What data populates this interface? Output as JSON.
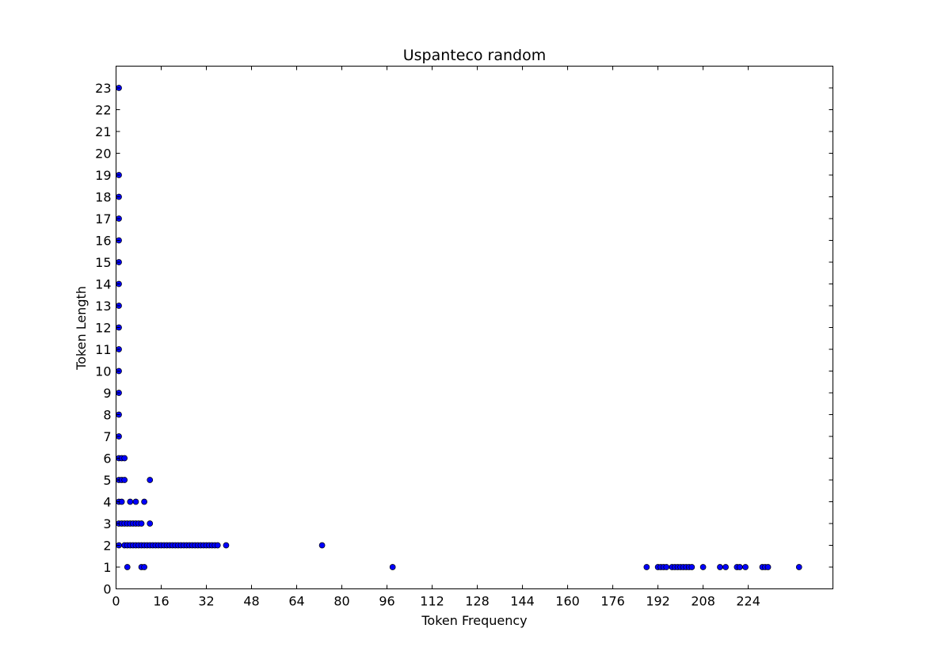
{
  "chart_data": {
    "type": "scatter",
    "title": "Uspanteco random",
    "xlabel": "Token Frequency",
    "ylabel": "Token Length",
    "xlim": [
      0,
      254
    ],
    "ylim": [
      0,
      24
    ],
    "xticks": [
      0,
      16,
      32,
      48,
      64,
      80,
      96,
      112,
      128,
      144,
      160,
      176,
      192,
      208,
      224
    ],
    "yticks": [
      0,
      1,
      2,
      3,
      4,
      5,
      6,
      7,
      8,
      9,
      10,
      11,
      12,
      13,
      14,
      15,
      16,
      17,
      18,
      19,
      20,
      21,
      22,
      23
    ],
    "grid": false,
    "marker_color": "#0000ff",
    "points": [
      [
        1,
        23
      ],
      [
        1,
        19
      ],
      [
        1,
        18
      ],
      [
        1,
        17
      ],
      [
        1,
        16
      ],
      [
        1,
        15
      ],
      [
        1,
        14
      ],
      [
        1,
        13
      ],
      [
        1,
        12
      ],
      [
        1,
        11
      ],
      [
        1,
        10
      ],
      [
        1,
        9
      ],
      [
        1,
        8
      ],
      [
        1,
        7
      ],
      [
        1,
        6
      ],
      [
        2,
        6
      ],
      [
        3,
        6
      ],
      [
        1,
        5
      ],
      [
        2,
        5
      ],
      [
        3,
        5
      ],
      [
        12,
        5
      ],
      [
        1,
        4
      ],
      [
        2,
        4
      ],
      [
        5,
        4
      ],
      [
        7,
        4
      ],
      [
        10,
        4
      ],
      [
        1,
        3
      ],
      [
        2,
        3
      ],
      [
        3,
        3
      ],
      [
        4,
        3
      ],
      [
        5,
        3
      ],
      [
        6,
        3
      ],
      [
        7,
        3
      ],
      [
        8,
        3
      ],
      [
        9,
        3
      ],
      [
        12,
        3
      ],
      [
        1,
        2
      ],
      [
        3,
        2
      ],
      [
        4,
        2
      ],
      [
        5,
        2
      ],
      [
        6,
        2
      ],
      [
        7,
        2
      ],
      [
        8,
        2
      ],
      [
        9,
        2
      ],
      [
        10,
        2
      ],
      [
        11,
        2
      ],
      [
        12,
        2
      ],
      [
        13,
        2
      ],
      [
        14,
        2
      ],
      [
        15,
        2
      ],
      [
        16,
        2
      ],
      [
        17,
        2
      ],
      [
        18,
        2
      ],
      [
        19,
        2
      ],
      [
        20,
        2
      ],
      [
        21,
        2
      ],
      [
        22,
        2
      ],
      [
        23,
        2
      ],
      [
        24,
        2
      ],
      [
        25,
        2
      ],
      [
        26,
        2
      ],
      [
        27,
        2
      ],
      [
        28,
        2
      ],
      [
        29,
        2
      ],
      [
        30,
        2
      ],
      [
        31,
        2
      ],
      [
        32,
        2
      ],
      [
        33,
        2
      ],
      [
        34,
        2
      ],
      [
        35,
        2
      ],
      [
        36,
        2
      ],
      [
        39,
        2
      ],
      [
        73,
        2
      ],
      [
        4,
        1
      ],
      [
        9,
        1
      ],
      [
        10,
        1
      ],
      [
        98,
        1
      ],
      [
        188,
        1
      ],
      [
        192,
        1
      ],
      [
        193,
        1
      ],
      [
        194,
        1
      ],
      [
        195,
        1
      ],
      [
        197,
        1
      ],
      [
        198,
        1
      ],
      [
        199,
        1
      ],
      [
        200,
        1
      ],
      [
        201,
        1
      ],
      [
        202,
        1
      ],
      [
        203,
        1
      ],
      [
        204,
        1
      ],
      [
        208,
        1
      ],
      [
        214,
        1
      ],
      [
        216,
        1
      ],
      [
        220,
        1
      ],
      [
        221,
        1
      ],
      [
        223,
        1
      ],
      [
        229,
        1
      ],
      [
        230,
        1
      ],
      [
        231,
        1
      ],
      [
        242,
        1
      ]
    ]
  }
}
